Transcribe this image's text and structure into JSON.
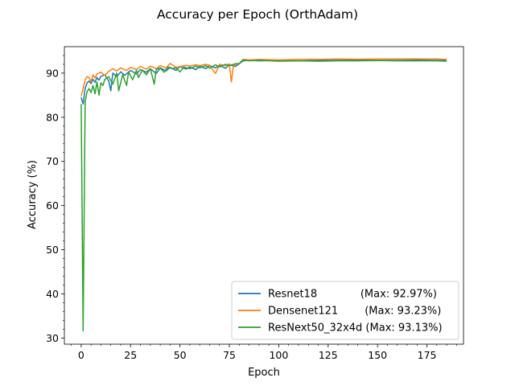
{
  "chart_data": {
    "type": "line",
    "title": "Accuracy per Epoch (OrthAdam)",
    "xlabel": "Epoch",
    "ylabel": "Accuracy (%)",
    "xlim": [
      -8.5,
      193.5
    ],
    "ylim": [
      28.6,
      96.0
    ],
    "xticks": [
      0,
      25,
      50,
      75,
      100,
      125,
      150,
      175
    ],
    "yticks": [
      30,
      40,
      50,
      60,
      70,
      80,
      90
    ],
    "grid": false,
    "legend_position": "lower-right",
    "series": [
      {
        "name": "Resnet18",
        "legend_label": "Resnet18             (Max: 92.97%)",
        "color": "#1f77b4",
        "x": [
          0,
          1,
          2,
          3,
          4,
          5,
          6,
          7,
          8,
          9,
          10,
          12,
          14,
          15,
          16,
          18,
          20,
          22,
          25,
          28,
          30,
          33,
          35,
          38,
          40,
          43,
          45,
          48,
          50,
          53,
          55,
          58,
          60,
          63,
          65,
          68,
          70,
          73,
          75,
          78,
          80,
          82,
          85,
          90,
          100,
          110,
          120,
          130,
          140,
          150,
          160,
          170,
          180,
          185
        ],
        "y": [
          84.5,
          83.0,
          86.5,
          87.8,
          88.2,
          87.6,
          88.6,
          87.9,
          89.0,
          88.4,
          89.3,
          89.6,
          88.2,
          86.0,
          90.0,
          89.2,
          90.3,
          89.5,
          90.6,
          89.8,
          90.8,
          90.2,
          91.0,
          89.9,
          91.2,
          90.5,
          91.3,
          90.6,
          91.5,
          90.9,
          91.4,
          90.8,
          91.6,
          91.0,
          91.7,
          91.2,
          91.8,
          91.1,
          91.9,
          91.5,
          92.1,
          92.8,
          92.9,
          92.8,
          92.9,
          92.8,
          92.9,
          92.9,
          92.97,
          92.9,
          92.9,
          92.95,
          92.9,
          92.9
        ]
      },
      {
        "name": "Densenet121",
        "legend_label": "Densenet121        (Max: 93.23%)",
        "color": "#ff7f0e",
        "x": [
          0,
          1,
          2,
          3,
          4,
          5,
          6,
          7,
          8,
          10,
          12,
          14,
          16,
          18,
          20,
          23,
          25,
          28,
          30,
          33,
          35,
          38,
          40,
          43,
          45,
          48,
          50,
          53,
          55,
          58,
          60,
          63,
          65,
          68,
          70,
          73,
          75,
          76,
          77,
          78,
          80,
          82,
          85,
          90,
          100,
          110,
          120,
          130,
          140,
          150,
          160,
          170,
          175,
          180,
          185
        ],
        "y": [
          84.8,
          86.5,
          88.5,
          89.2,
          89.0,
          88.0,
          89.6,
          88.9,
          89.8,
          90.2,
          89.5,
          90.4,
          91.0,
          90.5,
          91.2,
          90.6,
          91.3,
          90.8,
          91.5,
          90.9,
          91.6,
          91.0,
          91.7,
          91.2,
          92.2,
          91.3,
          91.5,
          91.8,
          91.6,
          91.9,
          91.7,
          92.0,
          91.8,
          89.9,
          92.0,
          91.7,
          92.1,
          88.0,
          91.5,
          92.0,
          92.1,
          93.1,
          93.0,
          93.1,
          93.0,
          93.1,
          93.1,
          93.2,
          93.15,
          93.2,
          93.2,
          93.23,
          93.2,
          93.2,
          93.1
        ]
      },
      {
        "name": "ResNext50_32x4d",
        "legend_label": "ResNext50_32x4d (Max: 93.13%)",
        "color": "#2ca02c",
        "x": [
          0,
          1,
          2,
          3,
          4,
          5,
          6,
          7,
          8,
          9,
          10,
          11,
          12,
          14,
          16,
          18,
          19,
          21,
          23,
          24,
          26,
          28,
          29,
          31,
          33,
          35,
          37,
          38,
          40,
          42,
          44,
          46,
          48,
          50,
          52,
          55,
          58,
          60,
          63,
          65,
          68,
          70,
          73,
          75,
          78,
          80,
          82,
          85,
          90,
          100,
          110,
          120,
          130,
          140,
          150,
          160,
          170,
          180,
          185
        ],
        "y": [
          83.0,
          31.6,
          83.5,
          85.8,
          86.5,
          85.6,
          87.2,
          85.3,
          88.0,
          85.0,
          87.8,
          87.2,
          88.6,
          89.2,
          87.5,
          90.0,
          86.0,
          89.6,
          87.2,
          90.3,
          88.5,
          90.6,
          89.0,
          90.7,
          89.6,
          91.0,
          87.5,
          90.9,
          91.1,
          90.2,
          91.4,
          91.0,
          91.2,
          90.3,
          91.4,
          91.0,
          91.6,
          91.2,
          91.7,
          91.1,
          91.9,
          91.4,
          92.0,
          91.7,
          92.1,
          92.2,
          93.0,
          92.8,
          92.9,
          92.7,
          92.8,
          92.7,
          92.8,
          92.8,
          92.85,
          92.8,
          92.8,
          92.8,
          92.7
        ]
      }
    ]
  }
}
